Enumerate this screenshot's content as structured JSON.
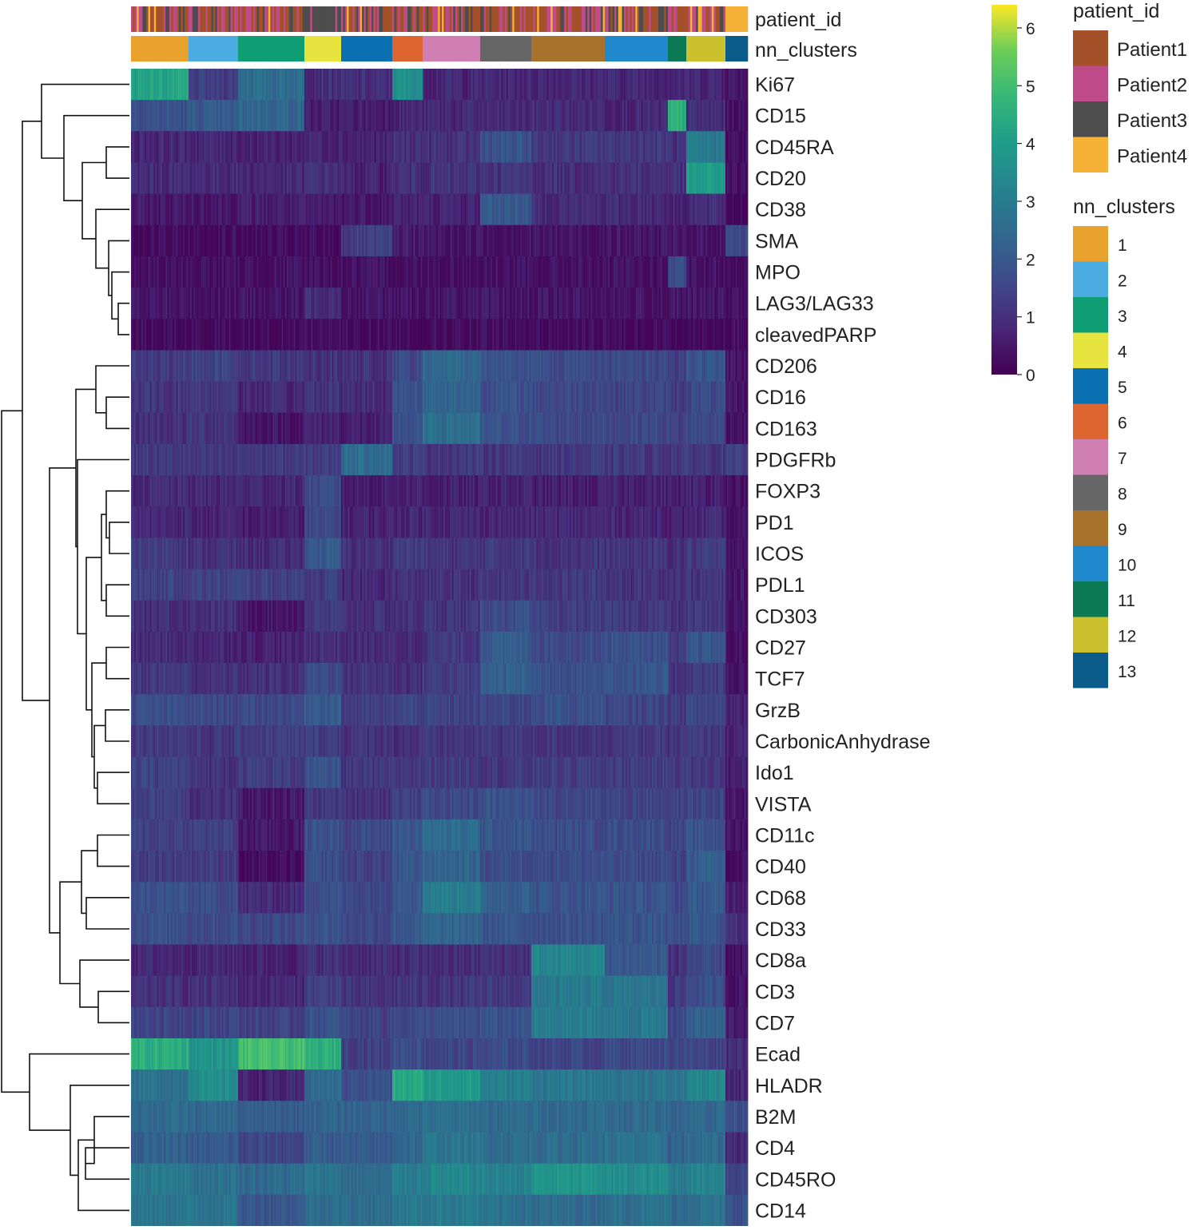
{
  "chart_data": {
    "type": "heatmap",
    "title": "",
    "annotation_rows": [
      "patient_id",
      "nn_clusters"
    ],
    "clusters": [
      "1",
      "2",
      "3",
      "4",
      "5",
      "6",
      "7",
      "8",
      "9",
      "10",
      "11",
      "12",
      "13"
    ],
    "cluster_widths": [
      72,
      62,
      83,
      46,
      64,
      38,
      72,
      64,
      92,
      79,
      23,
      49,
      28
    ],
    "patients": [
      "Patient1",
      "Patient2",
      "Patient3",
      "Patient4"
    ],
    "patient_colors": [
      "#a4512a",
      "#c04b8a",
      "#4d4d4d",
      "#f5b236"
    ],
    "cluster_colors": [
      "#e8a22d",
      "#4aace0",
      "#0f9e73",
      "#e8e43f",
      "#0a70b2",
      "#dc6530",
      "#cf7fb2",
      "#666666",
      "#a9722c",
      "#2089cd",
      "#0b7a54",
      "#cbc12f",
      "#0a5a8a"
    ],
    "markers": [
      "Ki67",
      "CD15",
      "CD45RA",
      "CD20",
      "CD38",
      "SMA",
      "MPO",
      "LAG3/LAG33",
      "cleavedPARP",
      "CD206",
      "CD16",
      "CD163",
      "PDGFRb",
      "FOXP3",
      "PD1",
      "ICOS",
      "PDL1",
      "CD303",
      "CD27",
      "TCF7",
      "GrzB",
      "CarbonicAnhydrase",
      "Ido1",
      "VISTA",
      "CD11c",
      "CD40",
      "CD68",
      "CD33",
      "CD8a",
      "CD3",
      "CD7",
      "Ecad",
      "HLADR",
      "B2M",
      "CD4",
      "CD45RO",
      "CD14"
    ],
    "values": [
      [
        4.2,
        1.3,
        2.6,
        1.0,
        0.9,
        3.6,
        0.8,
        0.8,
        0.8,
        0.8,
        0.8,
        0.8,
        0.5
      ],
      [
        1.8,
        2.0,
        2.4,
        0.6,
        0.6,
        0.8,
        0.8,
        0.8,
        0.9,
        0.8,
        4.5,
        0.9,
        0.3
      ],
      [
        0.8,
        0.8,
        0.7,
        0.8,
        0.7,
        1.0,
        1.0,
        1.8,
        1.2,
        1.2,
        1.0,
        2.9,
        0.3
      ],
      [
        0.9,
        0.9,
        0.8,
        1.0,
        0.7,
        1.0,
        1.0,
        1.1,
        1.0,
        1.0,
        1.0,
        3.9,
        0.3
      ],
      [
        0.5,
        0.5,
        0.6,
        0.5,
        0.5,
        0.7,
        0.7,
        2.0,
        0.9,
        0.9,
        0.7,
        0.9,
        0.2
      ],
      [
        0.2,
        0.2,
        0.2,
        0.2,
        1.3,
        0.6,
        0.4,
        0.4,
        0.4,
        0.4,
        0.4,
        0.4,
        1.6
      ],
      [
        0.3,
        0.3,
        0.3,
        0.3,
        0.3,
        0.3,
        0.3,
        0.3,
        0.3,
        0.3,
        1.6,
        0.3,
        0.3
      ],
      [
        0.4,
        0.4,
        0.4,
        1.0,
        0.4,
        0.4,
        0.4,
        0.4,
        0.4,
        0.4,
        0.4,
        0.4,
        0.3
      ],
      [
        0.2,
        0.2,
        0.2,
        0.3,
        0.2,
        0.2,
        0.2,
        0.2,
        0.2,
        0.2,
        0.2,
        0.2,
        0.2
      ],
      [
        1.2,
        1.5,
        1.2,
        1.1,
        1.0,
        1.6,
        2.4,
        1.9,
        1.7,
        1.6,
        1.4,
        1.9,
        0.4
      ],
      [
        1.1,
        1.2,
        0.8,
        1.1,
        0.9,
        1.9,
        2.3,
        1.8,
        1.6,
        1.5,
        1.3,
        1.6,
        0.4
      ],
      [
        1.0,
        1.1,
        0.4,
        0.7,
        0.6,
        1.8,
        2.6,
        1.8,
        1.6,
        1.6,
        1.4,
        1.6,
        0.4
      ],
      [
        1.2,
        1.1,
        1.2,
        1.3,
        2.6,
        1.3,
        1.2,
        1.2,
        1.2,
        1.2,
        1.2,
        1.2,
        1.3
      ],
      [
        0.9,
        0.8,
        0.8,
        1.6,
        0.6,
        0.7,
        0.6,
        0.7,
        0.6,
        0.7,
        0.6,
        0.7,
        0.3
      ],
      [
        0.8,
        0.7,
        0.6,
        1.5,
        0.7,
        0.8,
        0.8,
        0.8,
        0.8,
        0.8,
        0.6,
        0.8,
        0.3
      ],
      [
        1.3,
        1.0,
        0.9,
        2.0,
        1.0,
        1.3,
        1.1,
        1.2,
        1.1,
        1.1,
        1.0,
        1.2,
        0.5
      ],
      [
        1.4,
        1.4,
        1.4,
        1.3,
        0.8,
        1.0,
        1.0,
        1.1,
        1.2,
        1.1,
        1.1,
        1.1,
        0.4
      ],
      [
        1.0,
        1.0,
        0.5,
        1.2,
        1.0,
        1.0,
        1.1,
        1.7,
        1.3,
        1.2,
        1.0,
        1.2,
        0.4
      ],
      [
        0.9,
        0.8,
        0.7,
        1.0,
        0.9,
        0.9,
        1.2,
        2.1,
        1.7,
        1.8,
        1.1,
        1.9,
        0.3
      ],
      [
        1.2,
        1.0,
        1.0,
        1.7,
        1.1,
        1.0,
        1.3,
        2.2,
        1.8,
        1.9,
        1.1,
        1.3,
        0.4
      ],
      [
        1.7,
        1.6,
        1.6,
        2.1,
        1.3,
        1.5,
        1.4,
        1.5,
        1.8,
        1.5,
        1.3,
        1.5,
        0.8
      ],
      [
        1.3,
        1.1,
        1.3,
        1.3,
        1.1,
        1.0,
        1.1,
        1.2,
        1.1,
        1.2,
        1.1,
        1.2,
        0.7
      ],
      [
        1.4,
        1.1,
        1.3,
        1.8,
        1.1,
        1.2,
        1.3,
        1.2,
        1.3,
        1.3,
        1.3,
        1.2,
        0.6
      ],
      [
        1.4,
        1.0,
        0.5,
        1.2,
        1.1,
        1.4,
        1.6,
        1.8,
        1.6,
        1.5,
        1.4,
        1.5,
        0.4
      ],
      [
        1.4,
        1.4,
        0.5,
        1.8,
        1.6,
        2.0,
        2.5,
        1.9,
        1.7,
        1.7,
        1.5,
        1.8,
        0.4
      ],
      [
        1.3,
        1.3,
        0.2,
        1.7,
        1.4,
        1.9,
        2.3,
        1.7,
        1.7,
        1.6,
        1.4,
        2.1,
        0.2
      ],
      [
        1.8,
        1.7,
        0.9,
        1.8,
        1.6,
        2.1,
        3.1,
        2.2,
        1.9,
        1.9,
        1.6,
        2.0,
        0.7
      ],
      [
        1.8,
        1.7,
        1.6,
        1.9,
        1.6,
        2.0,
        2.3,
        1.9,
        1.8,
        1.9,
        1.7,
        1.9,
        1.0
      ],
      [
        0.8,
        0.8,
        0.7,
        1.0,
        0.9,
        0.9,
        0.9,
        1.0,
        3.3,
        2.0,
        1.0,
        1.5,
        0.3
      ],
      [
        1.0,
        1.0,
        0.8,
        1.4,
        1.0,
        1.1,
        1.1,
        1.2,
        2.9,
        2.8,
        1.2,
        1.7,
        0.4
      ],
      [
        1.5,
        1.5,
        1.4,
        1.8,
        1.5,
        1.6,
        1.7,
        1.8,
        3.0,
        2.9,
        1.6,
        2.2,
        0.6
      ],
      [
        4.5,
        3.7,
        5.0,
        4.5,
        1.4,
        1.8,
        1.5,
        1.6,
        1.5,
        1.6,
        1.6,
        1.5,
        1.0
      ],
      [
        2.7,
        3.5,
        0.7,
        2.5,
        1.8,
        4.3,
        3.9,
        3.1,
        2.9,
        2.8,
        2.8,
        3.3,
        0.8
      ],
      [
        2.5,
        2.4,
        2.1,
        2.3,
        2.3,
        2.5,
        2.6,
        2.5,
        2.5,
        2.5,
        2.4,
        2.5,
        1.8
      ],
      [
        2.2,
        2.0,
        1.5,
        2.1,
        2.0,
        2.4,
        2.8,
        2.6,
        2.6,
        2.7,
        2.3,
        2.5,
        0.9
      ],
      [
        3.0,
        2.7,
        2.5,
        2.8,
        2.5,
        3.1,
        3.3,
        3.2,
        3.7,
        3.5,
        3.0,
        3.3,
        1.5
      ],
      [
        2.8,
        2.8,
        2.0,
        2.6,
        2.6,
        2.9,
        3.0,
        2.7,
        2.5,
        2.7,
        2.5,
        2.7,
        1.8
      ]
    ],
    "colorbar": {
      "min": 0,
      "max": 6.4,
      "ticks": [
        "0",
        "1",
        "2",
        "3",
        "4",
        "5",
        "6"
      ],
      "colormap": "viridis"
    },
    "legend": {
      "patient_title": "patient_id",
      "cluster_title": "nn_clusters",
      "placement": "right"
    },
    "dendrogram": "hierarchical clustering of markers (left)"
  }
}
